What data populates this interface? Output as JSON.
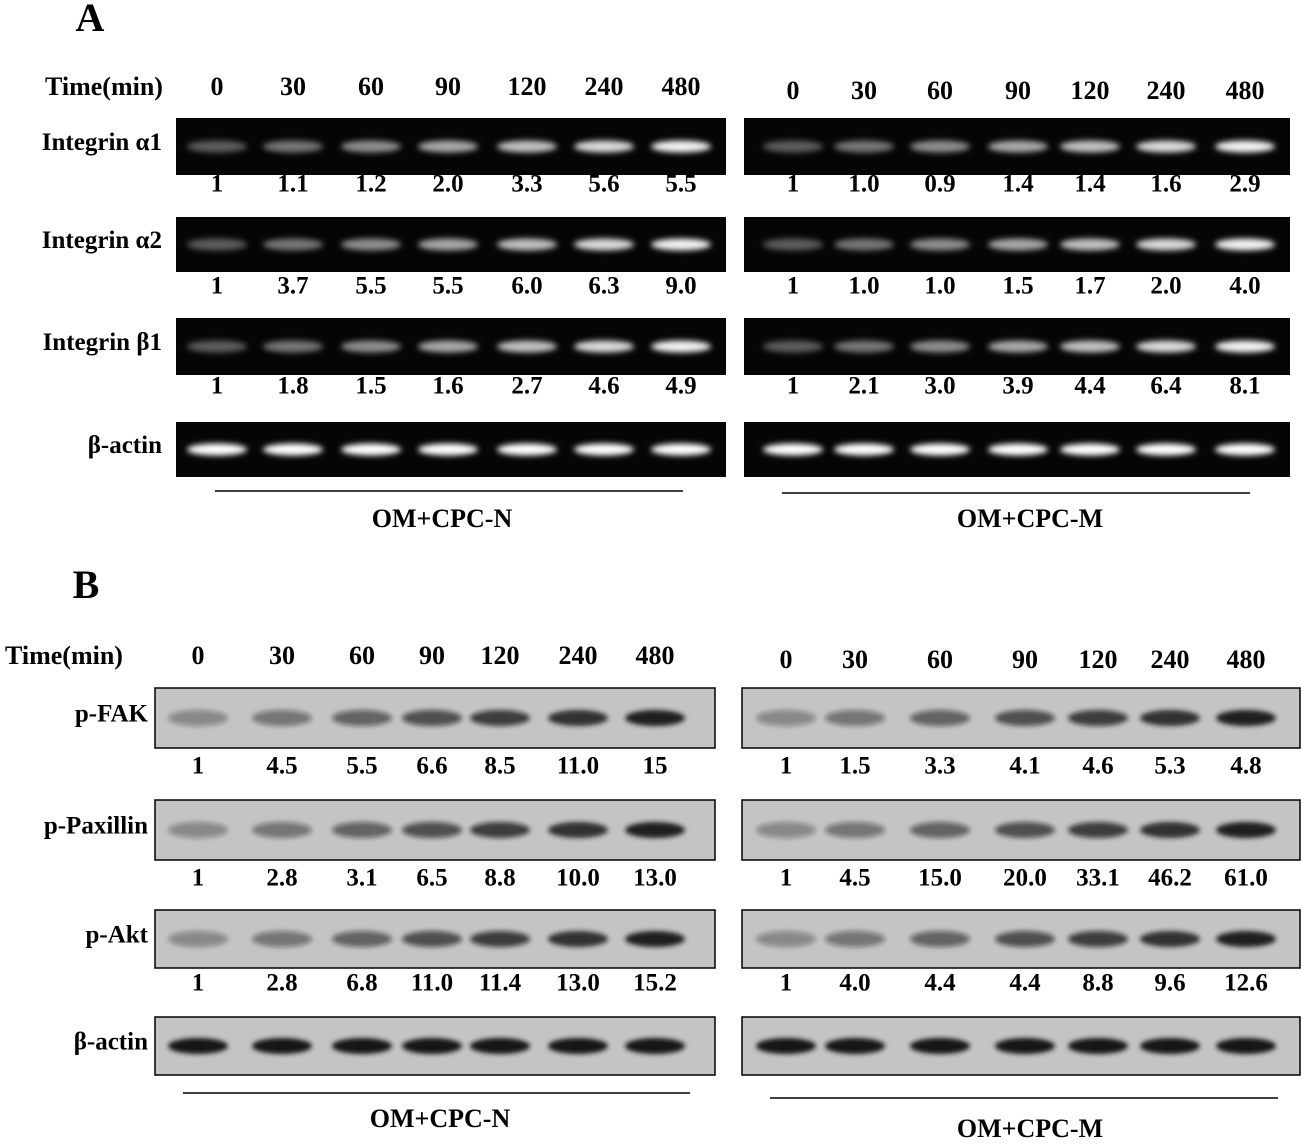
{
  "panels": [
    {
      "label": "A",
      "time_label": "Time(min)",
      "row_labels": [
        "Integrin α1",
        "Integrin α2",
        "Integrin β1",
        "β-actin"
      ],
      "sides": [
        {
          "times": [
            0,
            30,
            60,
            90,
            120,
            240,
            480
          ],
          "group": "OM+CPC-N",
          "values": [
            [
              "1",
              "1.1",
              "1.2",
              "2.0",
              "3.3",
              "5.6",
              "5.5"
            ],
            [
              "1",
              "3.7",
              "5.5",
              "5.5",
              "6.0",
              "6.3",
              "9.0"
            ],
            [
              "1",
              "1.8",
              "1.5",
              "1.6",
              "2.7",
              "4.6",
              "4.9"
            ]
          ]
        },
        {
          "times": [
            0,
            30,
            60,
            90,
            120,
            240,
            480
          ],
          "group": "OM+CPC-M",
          "values": [
            [
              "1",
              "1.0",
              "0.9",
              "1.4",
              "1.4",
              "1.6",
              "2.9"
            ],
            [
              "1",
              "1.0",
              "1.0",
              "1.5",
              "1.7",
              "2.0",
              "4.0"
            ],
            [
              "1",
              "2.1",
              "3.0",
              "3.9",
              "4.4",
              "6.4",
              "8.1"
            ]
          ]
        }
      ]
    },
    {
      "label": "B",
      "time_label": "Time(min)",
      "row_labels": [
        "p-FAK",
        "p-Paxillin",
        "p-Akt",
        "β-actin"
      ],
      "sides": [
        {
          "times": [
            0,
            30,
            60,
            90,
            120,
            240,
            480
          ],
          "group": "OM+CPC-N",
          "values": [
            [
              "1",
              "4.5",
              "5.5",
              "6.6",
              "8.5",
              "11.0",
              "15"
            ],
            [
              "1",
              "2.8",
              "3.1",
              "6.5",
              "8.8",
              "10.0",
              "13.0"
            ],
            [
              "1",
              "2.8",
              "6.8",
              "11.0",
              "11.4",
              "13.0",
              "15.2"
            ]
          ]
        },
        {
          "times": [
            0,
            30,
            60,
            90,
            120,
            240,
            480
          ],
          "group": "OM+CPC-M",
          "values": [
            [
              "1",
              "1.5",
              "3.3",
              "4.1",
              "4.6",
              "5.3",
              "4.8"
            ],
            [
              "1",
              "4.5",
              "15.0",
              "20.0",
              "33.1",
              "46.2",
              "61.0"
            ],
            [
              "1",
              "4.0",
              "4.4",
              "4.4",
              "8.8",
              "9.6",
              "12.6"
            ]
          ]
        }
      ]
    }
  ]
}
